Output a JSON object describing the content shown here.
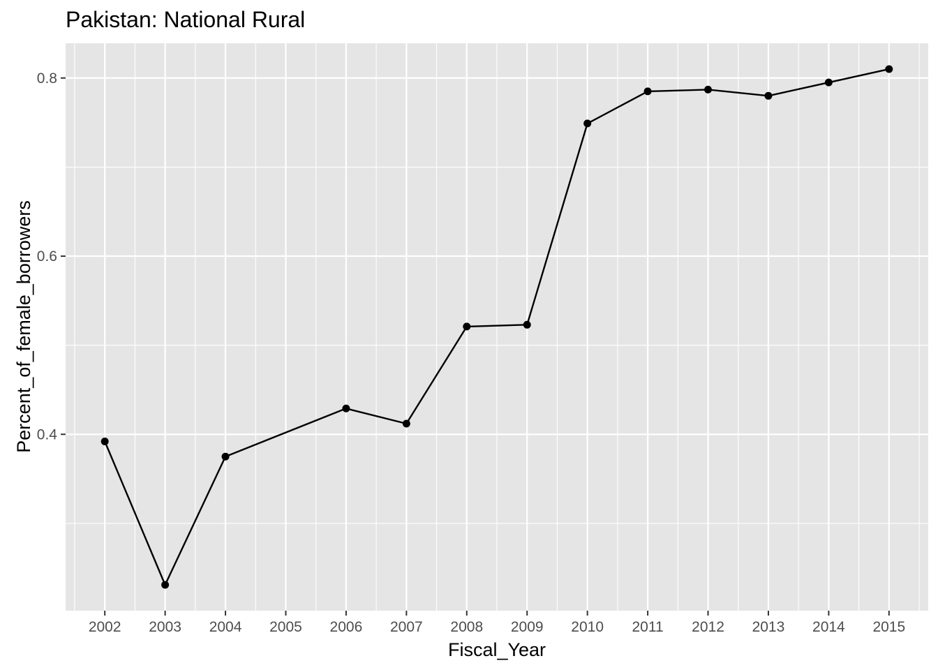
{
  "chart_data": {
    "type": "line",
    "title": "Pakistan:  National Rural",
    "xlabel": "Fiscal_Year",
    "ylabel": "Percent_of_female_borrowers",
    "x": [
      2002,
      2003,
      2004,
      2006,
      2007,
      2008,
      2009,
      2010,
      2011,
      2012,
      2013,
      2014,
      2015
    ],
    "y": [
      0.392,
      0.231,
      0.375,
      0.429,
      0.412,
      0.521,
      0.523,
      0.749,
      0.785,
      0.787,
      0.78,
      0.795,
      0.81
    ],
    "x_ticks": [
      "2002",
      "2003",
      "2004",
      "2005",
      "2006",
      "2007",
      "2008",
      "2009",
      "2010",
      "2011",
      "2012",
      "2013",
      "2014",
      "2015"
    ],
    "y_ticks": [
      "0.4",
      "0.6",
      "0.8"
    ],
    "xlim": [
      2001.35,
      2015.65
    ],
    "ylim": [
      0.202,
      0.839
    ],
    "grid": true,
    "legend": "none",
    "colors": {
      "panel_background": "#e5e5e5",
      "grid_line": "#ffffff",
      "series": "#000000",
      "tick_label": "#4d4d4d",
      "tick_mark": "#333333"
    }
  }
}
